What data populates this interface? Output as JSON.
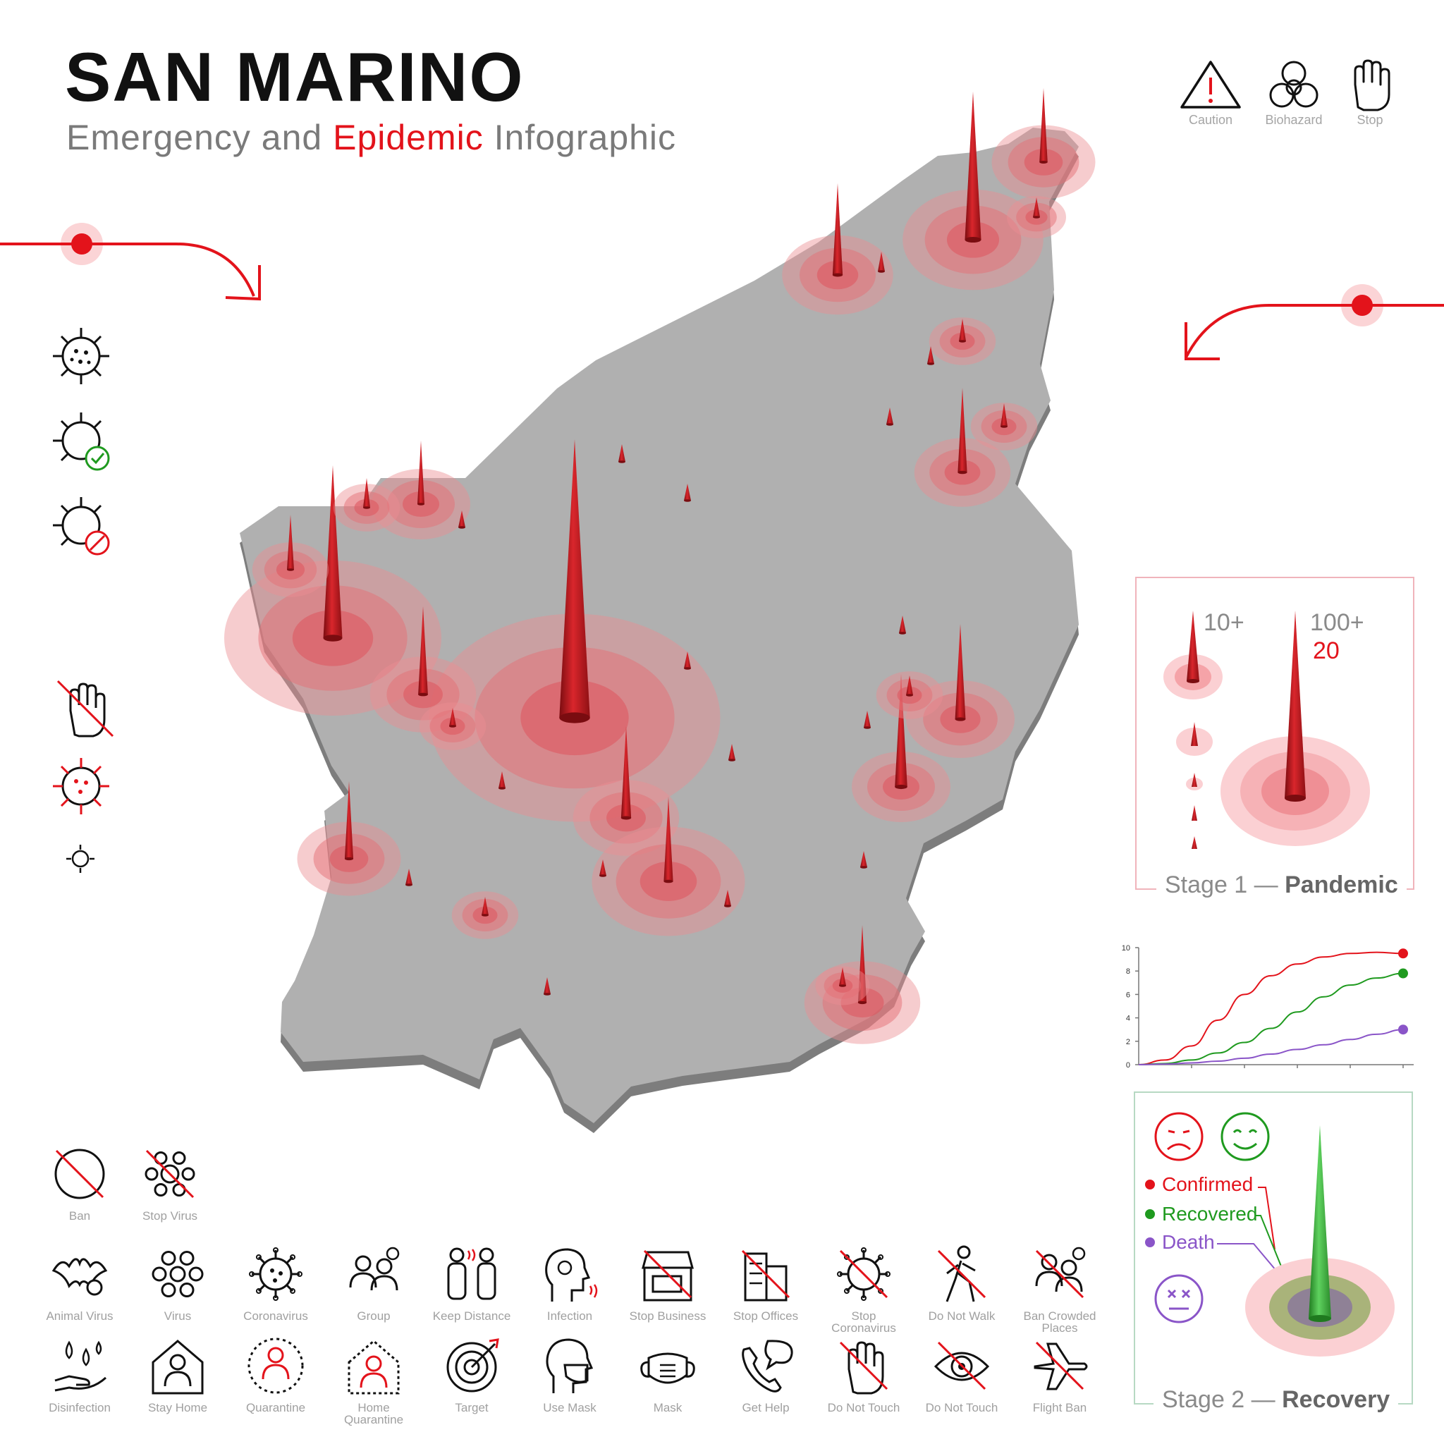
{
  "header": {
    "title": "SAN MARINO",
    "subtitle_pre": "Emergency and",
    "subtitle_accent": "Epidemic",
    "subtitle_post": "Infographic"
  },
  "top_icons": [
    {
      "icon": "caution-icon",
      "label": "Caution"
    },
    {
      "icon": "biohazard-icon",
      "label": "Biohazard"
    },
    {
      "icon": "stop-hand-icon",
      "label": "Stop"
    }
  ],
  "stage1": {
    "title_pre": "Stage 1 —",
    "title_bold": "Pandemic",
    "label_small": "10+",
    "label_large": "100+",
    "label_large_value": "20"
  },
  "chart_data": {
    "type": "line",
    "x": [
      0,
      1,
      2,
      3,
      4,
      5,
      6,
      7,
      8,
      9,
      10
    ],
    "series": [
      {
        "color": "#e3131b",
        "values": [
          0,
          0.4,
          1.6,
          3.8,
          6.0,
          7.6,
          8.6,
          9.2,
          9.5,
          9.6,
          9.5
        ]
      },
      {
        "color": "#1f9a1f",
        "values": [
          0,
          0.1,
          0.4,
          1.0,
          1.9,
          3.1,
          4.5,
          5.8,
          6.8,
          7.4,
          7.8
        ]
      },
      {
        "color": "#8a55c8",
        "values": [
          0,
          0.05,
          0.15,
          0.3,
          0.55,
          0.9,
          1.3,
          1.7,
          2.15,
          2.6,
          3.0
        ]
      }
    ],
    "yticks": [
      "0",
      "2",
      "4",
      "6",
      "8",
      "10"
    ],
    "ylim": [
      0,
      10
    ],
    "grid": false
  },
  "stage2": {
    "title_pre": "Stage 2 —",
    "title_bold": "Recovery",
    "statuses": [
      {
        "label": "Confirmed",
        "color": "#e3131b"
      },
      {
        "label": "Recovered",
        "color": "#1f9a1f"
      },
      {
        "label": "Death",
        "color": "#8a55c8"
      }
    ]
  },
  "bottom_icons_row1": [
    {
      "icon": "ban-icon",
      "label": "Ban"
    },
    {
      "icon": "stop-virus-icon",
      "label": "Stop Virus"
    }
  ],
  "bottom_icons_row2": [
    {
      "icon": "animal-virus-icon",
      "label": "Animal Virus"
    },
    {
      "icon": "virus-icon",
      "label": "Virus"
    },
    {
      "icon": "coronavirus-icon",
      "label": "Coronavirus"
    },
    {
      "icon": "group-icon",
      "label": "Group"
    },
    {
      "icon": "keep-distance-icon",
      "label": "Keep Distance"
    },
    {
      "icon": "infection-icon",
      "label": "Infection"
    },
    {
      "icon": "stop-business-icon",
      "label": "Stop Business"
    },
    {
      "icon": "stop-offices-icon",
      "label": "Stop Offices"
    },
    {
      "icon": "stop-coronavirus-icon",
      "label": "Stop Coronavirus"
    },
    {
      "icon": "do-not-walk-icon",
      "label": "Do Not Walk"
    },
    {
      "icon": "ban-crowded-places-icon",
      "label": "Ban Crowded Places"
    }
  ],
  "bottom_icons_row3": [
    {
      "icon": "disinfection-icon",
      "label": "Disinfection"
    },
    {
      "icon": "stay-home-icon",
      "label": "Stay Home"
    },
    {
      "icon": "quarantine-icon",
      "label": "Quarantine"
    },
    {
      "icon": "home-quarantine-icon",
      "label": "Home Quarantine"
    },
    {
      "icon": "target-icon",
      "label": "Target"
    },
    {
      "icon": "use-mask-icon",
      "label": "Use Mask"
    },
    {
      "icon": "mask-icon",
      "label": "Mask"
    },
    {
      "icon": "get-help-icon",
      "label": "Get Help"
    },
    {
      "icon": "do-not-touch-hand-icon",
      "label": "Do Not Touch"
    },
    {
      "icon": "do-not-touch-eye-icon",
      "label": "Do Not Touch"
    },
    {
      "icon": "flight-ban-icon",
      "label": "Flight Ban"
    }
  ],
  "colors": {
    "accent": "#e3131b",
    "map_fill": "#b0b0b0",
    "map_edge": "#7d7d7d",
    "recovered": "#1f9a1f",
    "death": "#8a55c8"
  }
}
